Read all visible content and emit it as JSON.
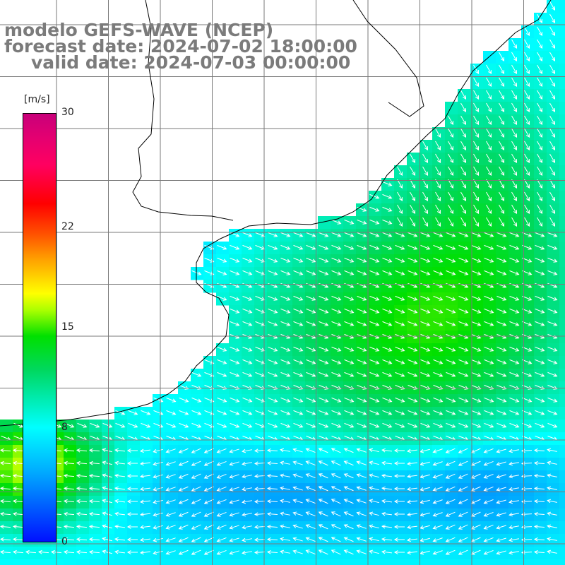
{
  "title": {
    "line1": "modelo GEFS-WAVE (NCEP)",
    "line2": "forecast date: 2024-07-02 18:00:00",
    "line3": "valid date: 2024-07-03 00:00:00"
  },
  "colorbar": {
    "unit": "[m/s]",
    "ticks": [
      {
        "label": "30",
        "value": 30
      },
      {
        "label": "22",
        "value": 22
      },
      {
        "label": "15",
        "value": 15
      },
      {
        "label": "8",
        "value": 8
      },
      {
        "label": "0",
        "value": 0
      }
    ],
    "range": [
      0,
      30
    ]
  },
  "colors": {
    "land": "#ffffff",
    "grid": "#7a7a7a",
    "coast": "#000000",
    "arrow": "#ffffff",
    "title": "#7b7b7b"
  }
}
